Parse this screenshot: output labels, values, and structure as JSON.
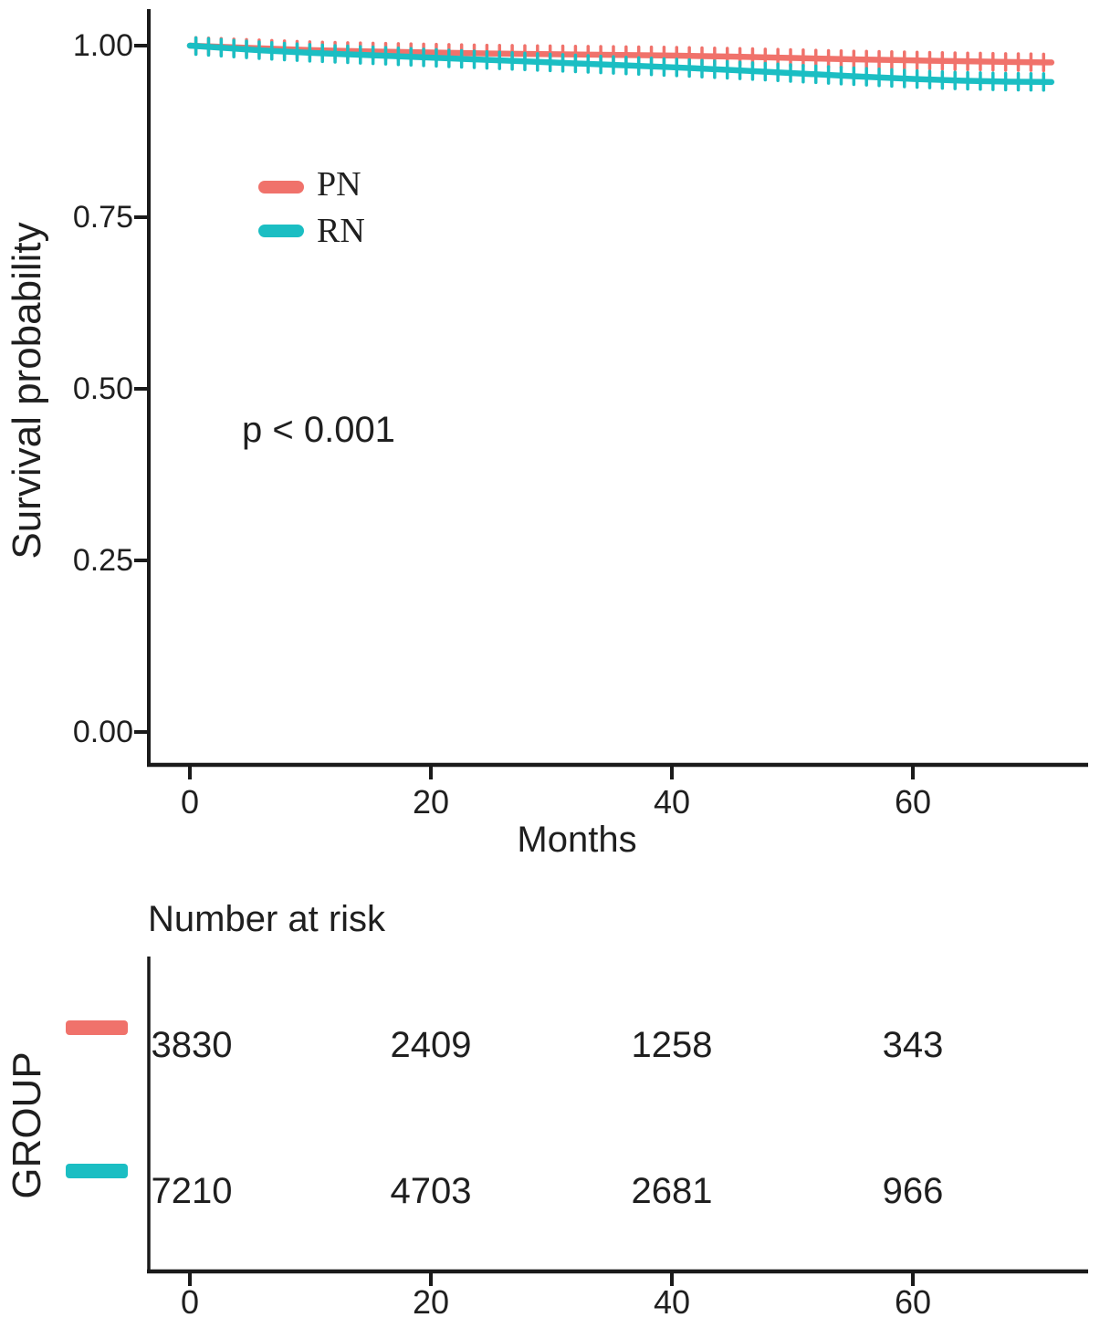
{
  "chart_data": {
    "type": "line",
    "subtype": "kaplan-meier-survival",
    "title": "",
    "xlabel": "Months",
    "ylabel": "Survival probability",
    "xlim": [
      0,
      74
    ],
    "ylim": [
      0,
      1.04
    ],
    "grid": false,
    "axis_color": "#1a1a1a",
    "xticks": [
      0,
      20,
      40,
      60
    ],
    "xticklabels": [
      "0",
      "20",
      "40",
      "60"
    ],
    "yticks": [
      1.0,
      0.75,
      0.5,
      0.25,
      0.0
    ],
    "yticklabels": [
      "1.00",
      "0.75",
      "0.50",
      "0.25",
      "0.00"
    ],
    "annotation_pvalue": "p < 0.001",
    "legend": {
      "position": "inside-upper-left",
      "entries": [
        {
          "label": "PN",
          "color": "#F0726B"
        },
        {
          "label": "RN",
          "color": "#1BBEC3"
        }
      ]
    },
    "series": [
      {
        "name": "PN",
        "color": "#F0726B",
        "points": [
          [
            0,
            1.0
          ],
          [
            3,
            0.998
          ],
          [
            6,
            0.996
          ],
          [
            10,
            0.9935
          ],
          [
            15,
            0.9915
          ],
          [
            20,
            0.99
          ],
          [
            25,
            0.9885
          ],
          [
            30,
            0.9875
          ],
          [
            35,
            0.9865
          ],
          [
            40,
            0.9855
          ],
          [
            45,
            0.984
          ],
          [
            50,
            0.982
          ],
          [
            55,
            0.98
          ],
          [
            60,
            0.9785
          ],
          [
            65,
            0.977
          ],
          [
            68,
            0.9762
          ],
          [
            71.5,
            0.9755
          ]
        ]
      },
      {
        "name": "RN",
        "color": "#1BBEC3",
        "points": [
          [
            0,
            1.0
          ],
          [
            3,
            0.9965
          ],
          [
            6,
            0.993
          ],
          [
            10,
            0.9895
          ],
          [
            15,
            0.986
          ],
          [
            20,
            0.9825
          ],
          [
            25,
            0.979
          ],
          [
            30,
            0.9755
          ],
          [
            35,
            0.972
          ],
          [
            40,
            0.9685
          ],
          [
            45,
            0.9645
          ],
          [
            50,
            0.96
          ],
          [
            55,
            0.9555
          ],
          [
            60,
            0.9515
          ],
          [
            64,
            0.949
          ],
          [
            68,
            0.9475
          ],
          [
            71.5,
            0.947
          ]
        ]
      }
    ],
    "censor_marks": {
      "start": 0.5,
      "step": 1.05,
      "end": 71.3
    },
    "risk_table": {
      "title": "Number at risk",
      "group_axis_label": "GROUP",
      "columns_months": [
        0,
        20,
        40,
        60
      ],
      "rows": [
        {
          "name": "PN",
          "color": "#F0726B",
          "values": [
            "3830",
            "2409",
            "1258",
            "343"
          ]
        },
        {
          "name": "RN",
          "color": "#1BBEC3",
          "values": [
            "7210",
            "4703",
            "2681",
            "966"
          ]
        }
      ]
    }
  }
}
